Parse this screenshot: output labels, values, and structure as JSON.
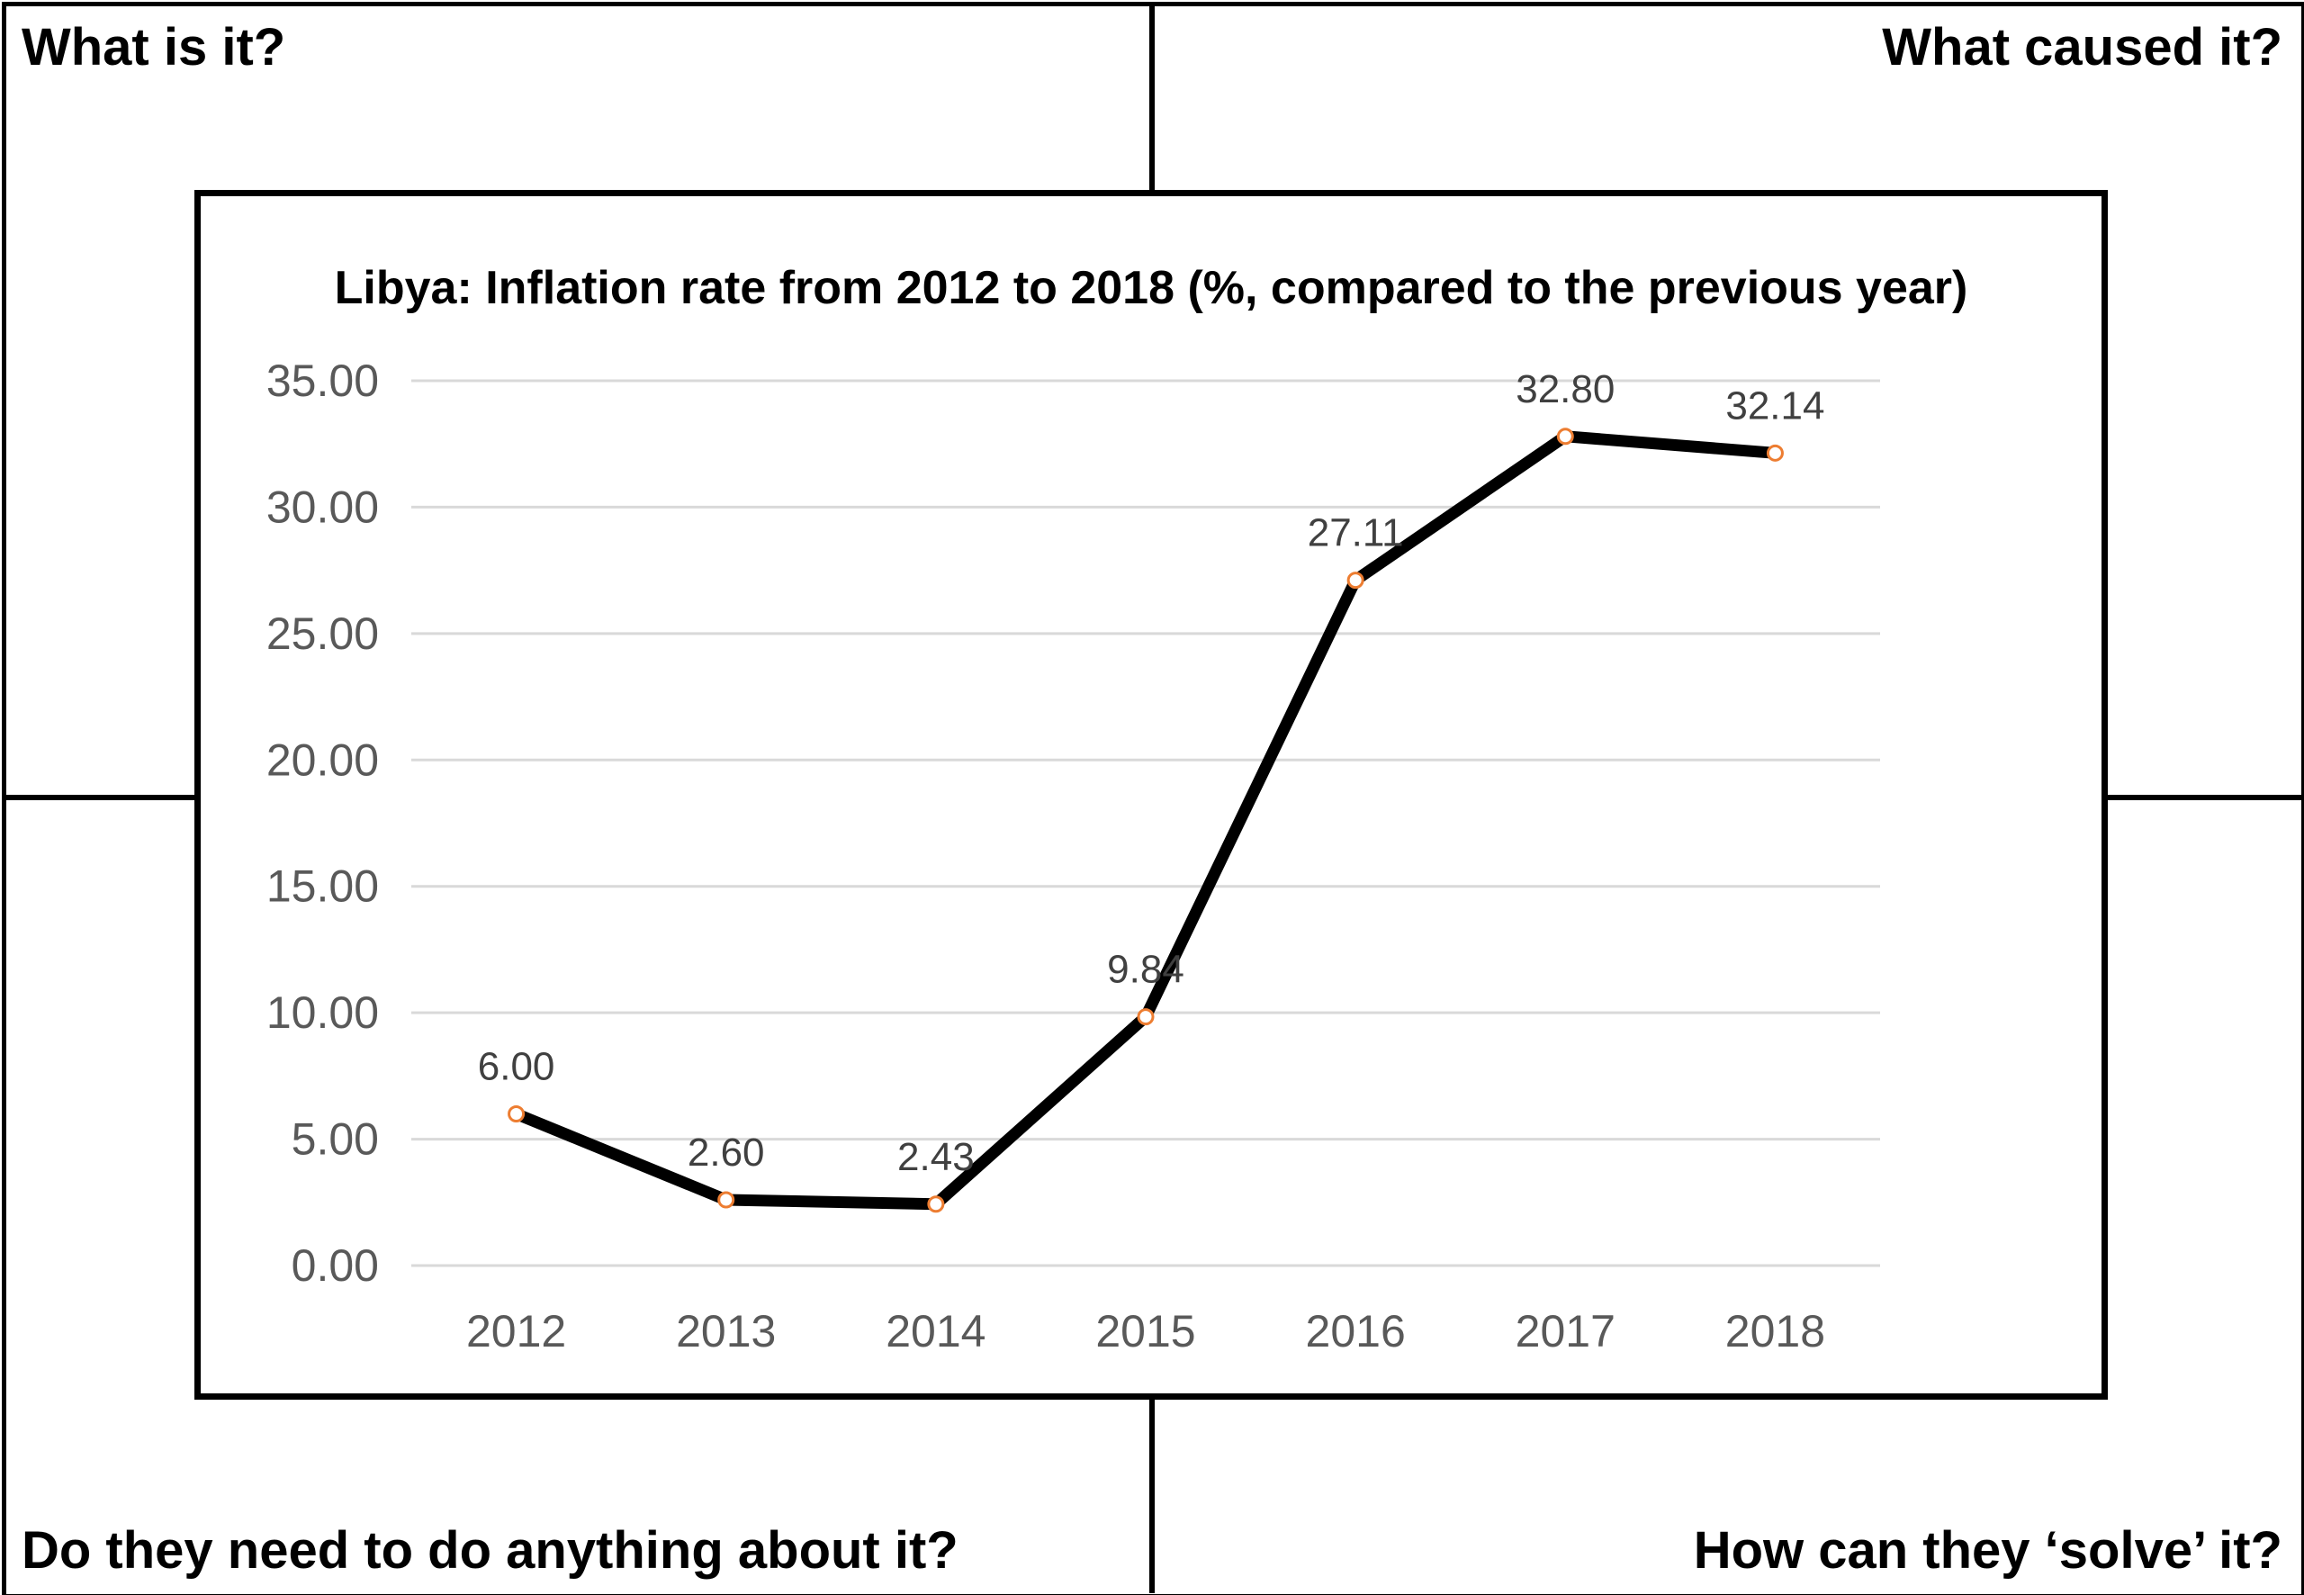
{
  "quadrants": {
    "top_left": "What is it?",
    "top_right": "What caused it?",
    "bottom_left": "Do they need to do anything about it?",
    "bottom_right": "How can they ‘solve’ it?"
  },
  "chart_data": {
    "type": "line",
    "title": "Libya: Inflation rate from 2012 to 2018 (%, compared to the previous year)",
    "xlabel": "",
    "ylabel": "",
    "categories": [
      "2012",
      "2013",
      "2014",
      "2015",
      "2016",
      "2017",
      "2018"
    ],
    "series": [
      {
        "values": [
          6.0,
          2.6,
          2.43,
          9.84,
          27.11,
          32.8,
          32.14
        ],
        "labels": [
          "6.00",
          "2.60",
          "2.43",
          "9.84",
          "27.11",
          "32.80",
          "32.14"
        ]
      }
    ],
    "ylim": [
      0,
      35
    ],
    "yticks": [
      "0.00",
      "5.00",
      "10.00",
      "15.00",
      "20.00",
      "25.00",
      "30.00",
      "35.00"
    ],
    "grid": true,
    "legend": "none",
    "colors": {
      "line": "#000000",
      "marker_edge": "#ED7D31",
      "marker_fill": "#ffffff",
      "grid": "#D9D9D9",
      "tick_text": "#595959",
      "data_label": "#404040"
    }
  }
}
